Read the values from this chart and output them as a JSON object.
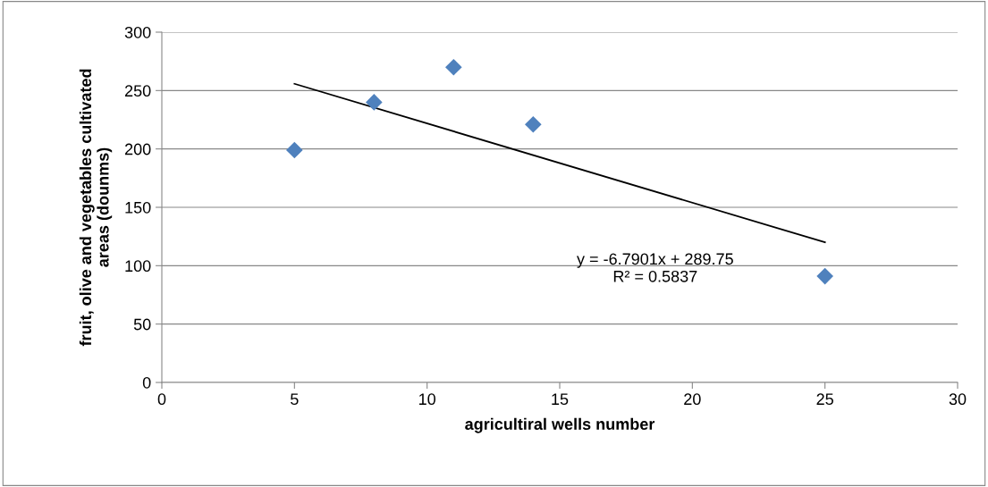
{
  "chart_data": {
    "type": "scatter",
    "xlabel": "agricultiral wells number",
    "ylabel": "fruit, olive and vegetables cultivated\nareas (dounms)",
    "series": [
      {
        "color": "#4f81bd",
        "marker": "diamond",
        "x": [
          5,
          8,
          11,
          14,
          25
        ],
        "values": [
          199,
          240,
          270,
          221,
          91
        ]
      },
      {
        "type": "line",
        "color": "#000000",
        "marker": "none",
        "line_style": "solid",
        "x": [
          5,
          25
        ],
        "values": [
          255.8,
          120.0
        ]
      }
    ],
    "annotations": [
      "y = -6.7901x + 289.75\nR² = 0.5837"
    ],
    "xlim": [
      0,
      30
    ],
    "xticks": [
      0,
      5,
      10,
      15,
      20,
      25,
      30
    ],
    "ylim": [
      0,
      300
    ],
    "yticks": [
      0,
      50,
      100,
      150,
      200,
      250,
      300
    ],
    "grid": "y",
    "legend": false
  }
}
